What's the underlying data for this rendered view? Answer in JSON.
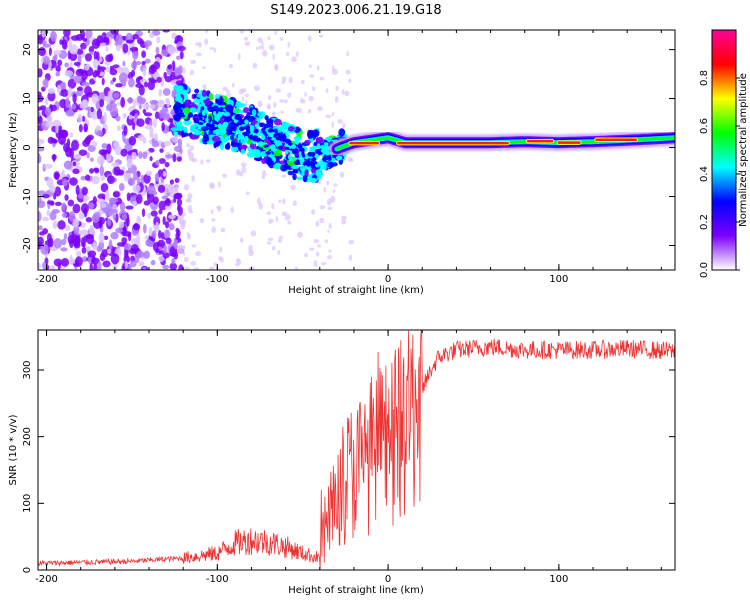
{
  "figure": {
    "title": "S149.2023.006.21.19.G18"
  },
  "chart_data": [
    {
      "type": "heatmap",
      "xlabel": "Height of straight line (km)",
      "ylabel": "Frequency (Hz)",
      "xlim": [
        -205,
        168
      ],
      "ylim": [
        -25,
        24
      ],
      "x_ticks": [
        "-200",
        "-100",
        "0",
        "100"
      ],
      "x_tick_values": [
        -200,
        -100,
        0,
        100
      ],
      "y_ticks": [
        "-20",
        "-10",
        "0",
        "10",
        "20"
      ],
      "y_tick_values": [
        -20,
        -10,
        0,
        10,
        20
      ],
      "colorbar": {
        "label": "Normalized spectral amplitude",
        "range": [
          0,
          1
        ],
        "ticks": [
          "0.0",
          "0.2",
          "0.4",
          "0.6",
          "0.8"
        ],
        "tick_values": [
          0.0,
          0.2,
          0.4,
          0.6,
          0.8
        ],
        "colors": [
          "#ffffff",
          "#7b00ff",
          "#0000ff",
          "#00ffff",
          "#00ff00",
          "#ffff00",
          "#ff0000",
          "#ff0099"
        ]
      },
      "ridge": {
        "x": [
          -125,
          -115,
          -105,
          -95,
          -85,
          -75,
          -65,
          -55,
          -45,
          -35,
          -28,
          -20,
          -10,
          0,
          10,
          20,
          40,
          60,
          80,
          100,
          120,
          140,
          168
        ],
        "freq": [
          8,
          7,
          6,
          5,
          4,
          2.5,
          1,
          -1,
          -2,
          -1,
          0,
          1,
          1.5,
          2,
          1,
          1,
          1,
          1,
          1.2,
          1,
          1.2,
          1.5,
          2
        ]
      },
      "peak_segments": [
        {
          "x0": -22,
          "x1": -6,
          "freq": 0.9
        },
        {
          "x0": 6,
          "x1": 70,
          "freq": 0.9
        },
        {
          "x0": 82,
          "x1": 96,
          "freq": 1.3
        },
        {
          "x0": 100,
          "x1": 112,
          "freq": 1.0
        },
        {
          "x0": 122,
          "x1": 145,
          "freq": 1.6
        }
      ],
      "scatter_region": {
        "x0": -205,
        "x1": -120,
        "y0": -25,
        "y1": 24
      }
    },
    {
      "type": "line",
      "xlabel": "Height of straight line (km)",
      "ylabel": "SNR (10 * v/v)",
      "xlim": [
        -205,
        168
      ],
      "ylim": [
        0,
        360
      ],
      "x_ticks": [
        "-200",
        "-100",
        "0",
        "100"
      ],
      "x_tick_values": [
        -200,
        -100,
        0,
        100
      ],
      "y_ticks": [
        "0",
        "100",
        "200",
        "300"
      ],
      "y_tick_values": [
        0,
        100,
        200,
        300
      ],
      "line_color": "#ee3333",
      "profile": {
        "x": [
          -205,
          -150,
          -120,
          -100,
          -90,
          -80,
          -70,
          -60,
          -50,
          -40,
          -35,
          -30,
          -25,
          -20,
          -15,
          -10,
          -5,
          0,
          5,
          10,
          15,
          20,
          25,
          30,
          40,
          60,
          80,
          100,
          120,
          140,
          168
        ],
        "snr": [
          10,
          13,
          18,
          25,
          40,
          45,
          42,
          35,
          25,
          18,
          80,
          110,
          140,
          150,
          160,
          175,
          190,
          190,
          200,
          215,
          240,
          270,
          300,
          320,
          330,
          335,
          330,
          330,
          330,
          332,
          328
        ]
      }
    }
  ]
}
